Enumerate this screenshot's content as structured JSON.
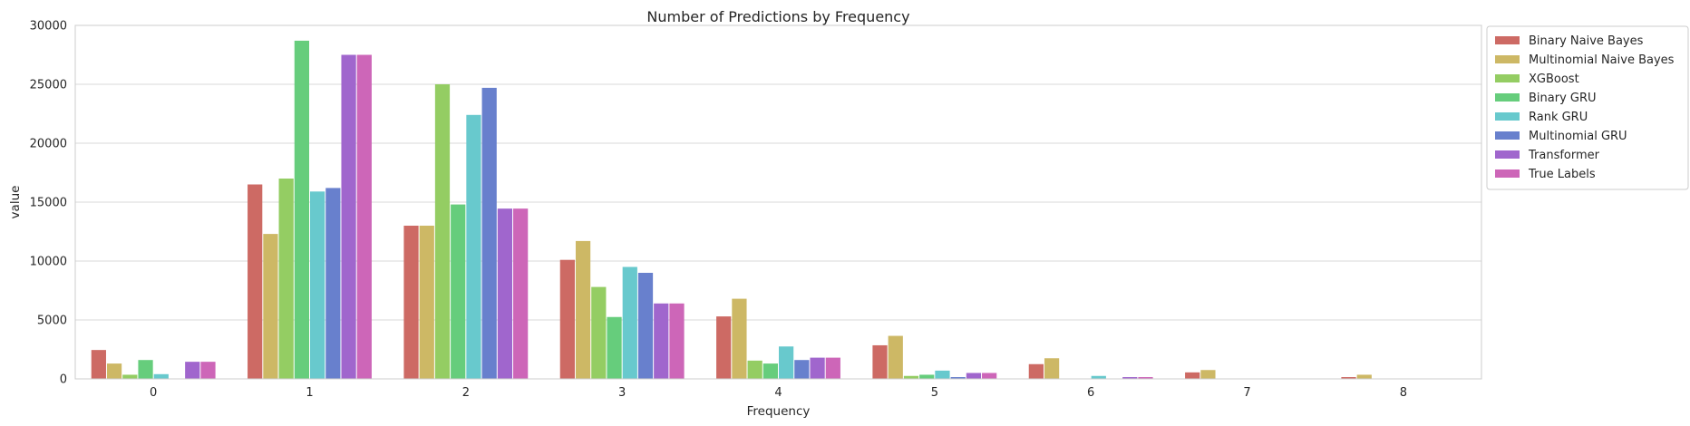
{
  "chart_data": {
    "type": "bar",
    "title": "Number of Predictions by Frequency",
    "xlabel": "Frequency",
    "ylabel": "value",
    "categories": [
      "0",
      "1",
      "2",
      "3",
      "4",
      "5",
      "6",
      "7",
      "8"
    ],
    "ylim": [
      0,
      30000
    ],
    "yticks": [
      0,
      5000,
      10000,
      15000,
      20000,
      25000,
      30000
    ],
    "grid": "horizontal",
    "legend_position": "top-right, outside plot",
    "series": [
      {
        "name": "Binary Naive Bayes",
        "color": "#cd6a64",
        "values": [
          2450,
          16500,
          13000,
          10100,
          5300,
          2850,
          1250,
          550,
          150
        ]
      },
      {
        "name": "Multinomial Naive Bayes",
        "color": "#cdb865",
        "values": [
          1300,
          12300,
          13000,
          11700,
          6800,
          3650,
          1750,
          750,
          350
        ]
      },
      {
        "name": "XGBoost",
        "color": "#94cd63",
        "values": [
          350,
          17000,
          25000,
          7800,
          1550,
          250,
          20,
          10,
          5
        ]
      },
      {
        "name": "Binary GRU",
        "color": "#66cd7c",
        "values": [
          1600,
          28700,
          14800,
          5250,
          1300,
          350,
          15,
          10,
          5
        ]
      },
      {
        "name": "Rank GRU",
        "color": "#68c9cd",
        "values": [
          400,
          15900,
          22400,
          9500,
          2750,
          700,
          250,
          20,
          5
        ]
      },
      {
        "name": "Multinomial GRU",
        "color": "#6880cd",
        "values": [
          20,
          16200,
          24700,
          9000,
          1600,
          150,
          20,
          10,
          5
        ]
      },
      {
        "name": "Transformer",
        "color": "#a066cd",
        "values": [
          1450,
          27500,
          14450,
          6400,
          1800,
          500,
          150,
          30,
          10
        ]
      },
      {
        "name": "True Labels",
        "color": "#cd66b8",
        "values": [
          1450,
          27500,
          14450,
          6400,
          1800,
          500,
          150,
          30,
          10
        ]
      }
    ]
  }
}
